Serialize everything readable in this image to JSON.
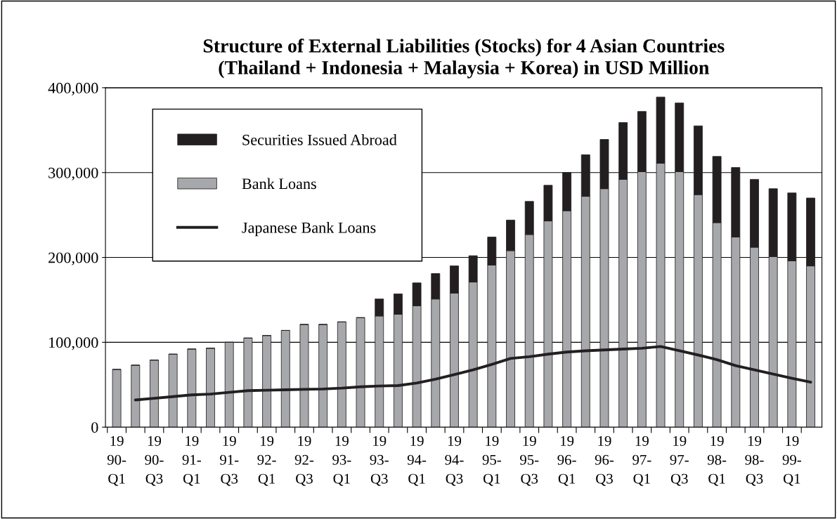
{
  "chart_data": {
    "type": "bar",
    "stacked": true,
    "title": "Structure of External Liabilities (Stocks) for 4 Asian Countries\n(Thailand + Indonesia + Malaysia + Korea) in USD Million",
    "categories": [
      "19\n90-\nQ1",
      null,
      "19\n90-\nQ3",
      null,
      "19\n91-\nQ1",
      null,
      "19\n91-\nQ3",
      null,
      "19\n92-\nQ1",
      null,
      "19\n92-\nQ3",
      null,
      "19\n93-\nQ1",
      null,
      "19\n93-\nQ3",
      null,
      "19\n94-\nQ1",
      null,
      "19\n94-\nQ3",
      null,
      "19\n95-\nQ1",
      null,
      "19\n95-\nQ3",
      null,
      "19\n96-\nQ1",
      null,
      "19\n96-\nQ3",
      null,
      "19\n97-\nQ1",
      null,
      "19\n97-\nQ3",
      null,
      "19\n98-\nQ1",
      null,
      "19\n98-\nQ3",
      null,
      "19\n99-\nQ1",
      null
    ],
    "series": [
      {
        "name": "Bank Loans",
        "color": "#a7a8ab",
        "values": [
          68000,
          73000,
          79000,
          86000,
          92000,
          93000,
          100000,
          105000,
          108000,
          114000,
          121000,
          121000,
          124000,
          129000,
          131000,
          133000,
          143000,
          151000,
          158000,
          171000,
          191000,
          208000,
          227000,
          243000,
          255000,
          272000,
          281000,
          292000,
          301000,
          311000,
          301000,
          274000,
          241000,
          224000,
          212000,
          201000,
          196000,
          190000
        ]
      },
      {
        "name": "Securities Issued Abroad",
        "color": "#231f20",
        "values": [
          0,
          0,
          0,
          0,
          0,
          0,
          0,
          0,
          0,
          0,
          0,
          0,
          0,
          0,
          20000,
          24000,
          27000,
          30000,
          32000,
          31000,
          33000,
          36000,
          39000,
          42000,
          45000,
          49000,
          58000,
          67000,
          71000,
          78000,
          81000,
          81000,
          78000,
          82000,
          80000,
          80000,
          80000,
          80000
        ]
      },
      {
        "name": "Japanese Bank Loans",
        "type": "line",
        "color": "#231f20",
        "values": [
          null,
          32000,
          34000,
          36000,
          38000,
          39000,
          41000,
          43000,
          43500,
          44000,
          44500,
          45000,
          46000,
          47500,
          48500,
          49000,
          52000,
          56500,
          62000,
          67500,
          74000,
          81000,
          83000,
          86000,
          88500,
          90000,
          91000,
          92000,
          93000,
          95000,
          90000,
          85000,
          79500,
          72500,
          67500,
          62500,
          57500,
          53000
        ]
      }
    ],
    "ylim": [
      0,
      400000
    ],
    "yticks": [
      {
        "value": 0,
        "label": "0"
      },
      {
        "value": 100000,
        "label": "100,000"
      },
      {
        "value": 200000,
        "label": "200,000"
      },
      {
        "value": 300000,
        "label": "300,000"
      },
      {
        "value": 400000,
        "label": "400,000"
      }
    ],
    "grid": "y",
    "legend": "top left",
    "line_style": "solid",
    "marker": "none"
  }
}
